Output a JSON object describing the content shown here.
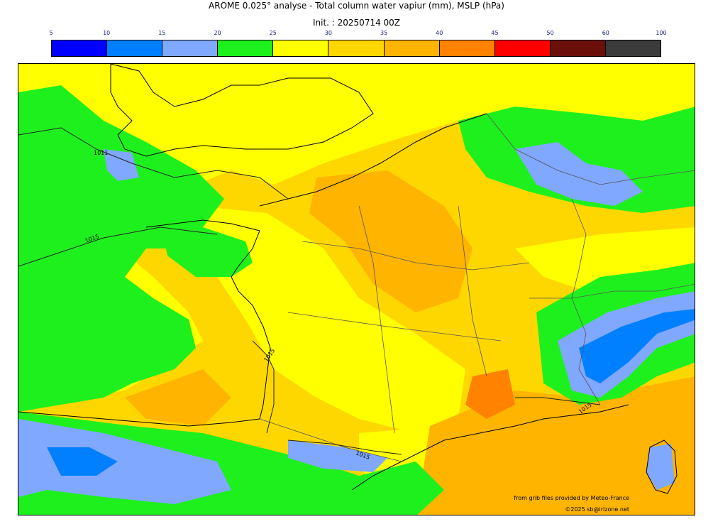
{
  "header": {
    "title": "AROME 0.025° analyse - Total column water vapiur (mm), MSLP (hPa)",
    "init": "Init. : 20250714 00Z"
  },
  "colorbar": {
    "ticks": [
      "5",
      "10",
      "15",
      "20",
      "25",
      "30",
      "35",
      "40",
      "45",
      "50",
      "60",
      "100"
    ],
    "colors": [
      "#0000ff",
      "#0080ff",
      "#80a8ff",
      "#1ef01e",
      "#ffff00",
      "#ffd700",
      "#ffb400",
      "#ff8200",
      "#ff0000",
      "#6b0f0a",
      "#3b3b3b"
    ]
  },
  "isobars": {
    "labels": [
      "1011",
      "1015",
      "1015",
      "1015",
      "1015"
    ]
  },
  "credits": {
    "source": "from grib files provided by Meteo-France",
    "copyright": "©2025 sb@irizone.net"
  }
}
